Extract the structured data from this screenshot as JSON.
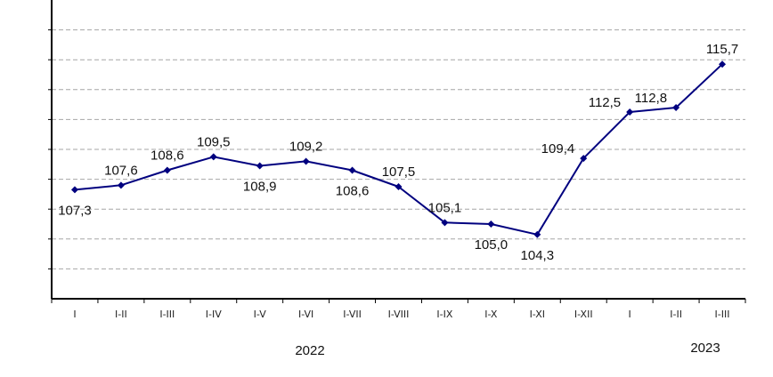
{
  "chart_data": {
    "type": "line",
    "title": "",
    "xlabel": "",
    "ylabel": "",
    "categories": [
      "I",
      "I-II",
      "I-III",
      "I-IV",
      "I-V",
      "I-VI",
      "I-VII",
      "I-VIII",
      "I-IX",
      "I-X",
      "I-XI",
      "I-XII",
      "I",
      "I-II",
      "I-III"
    ],
    "year_labels": [
      "2022",
      "2023"
    ],
    "series": [
      {
        "values": [
          107.3,
          107.6,
          108.6,
          109.5,
          108.9,
          109.2,
          108.6,
          107.5,
          105.1,
          105.0,
          104.3,
          109.4,
          112.5,
          112.8,
          115.7
        ],
        "value_labels": [
          "107,3",
          "107,6",
          "108,6",
          "109,5",
          "108,9",
          "109,2",
          "108,6",
          "107,5",
          "105,1",
          "105,0",
          "104,3",
          "109,4",
          "112,5",
          "112,8",
          "115,7"
        ],
        "label_positions": [
          "below",
          "above",
          "above",
          "above",
          "below",
          "above",
          "below",
          "above",
          "above",
          "below",
          "below",
          "left",
          "left",
          "left",
          "above"
        ]
      }
    ],
    "ylim": [
      100,
      120
    ],
    "gridlines": [
      102,
      104,
      106,
      108,
      110,
      112,
      114,
      116,
      118
    ],
    "grid": true,
    "legend": "none",
    "colors": {
      "line": "#00007f",
      "grid": "#a6a6a6",
      "axis": "#000000"
    }
  }
}
